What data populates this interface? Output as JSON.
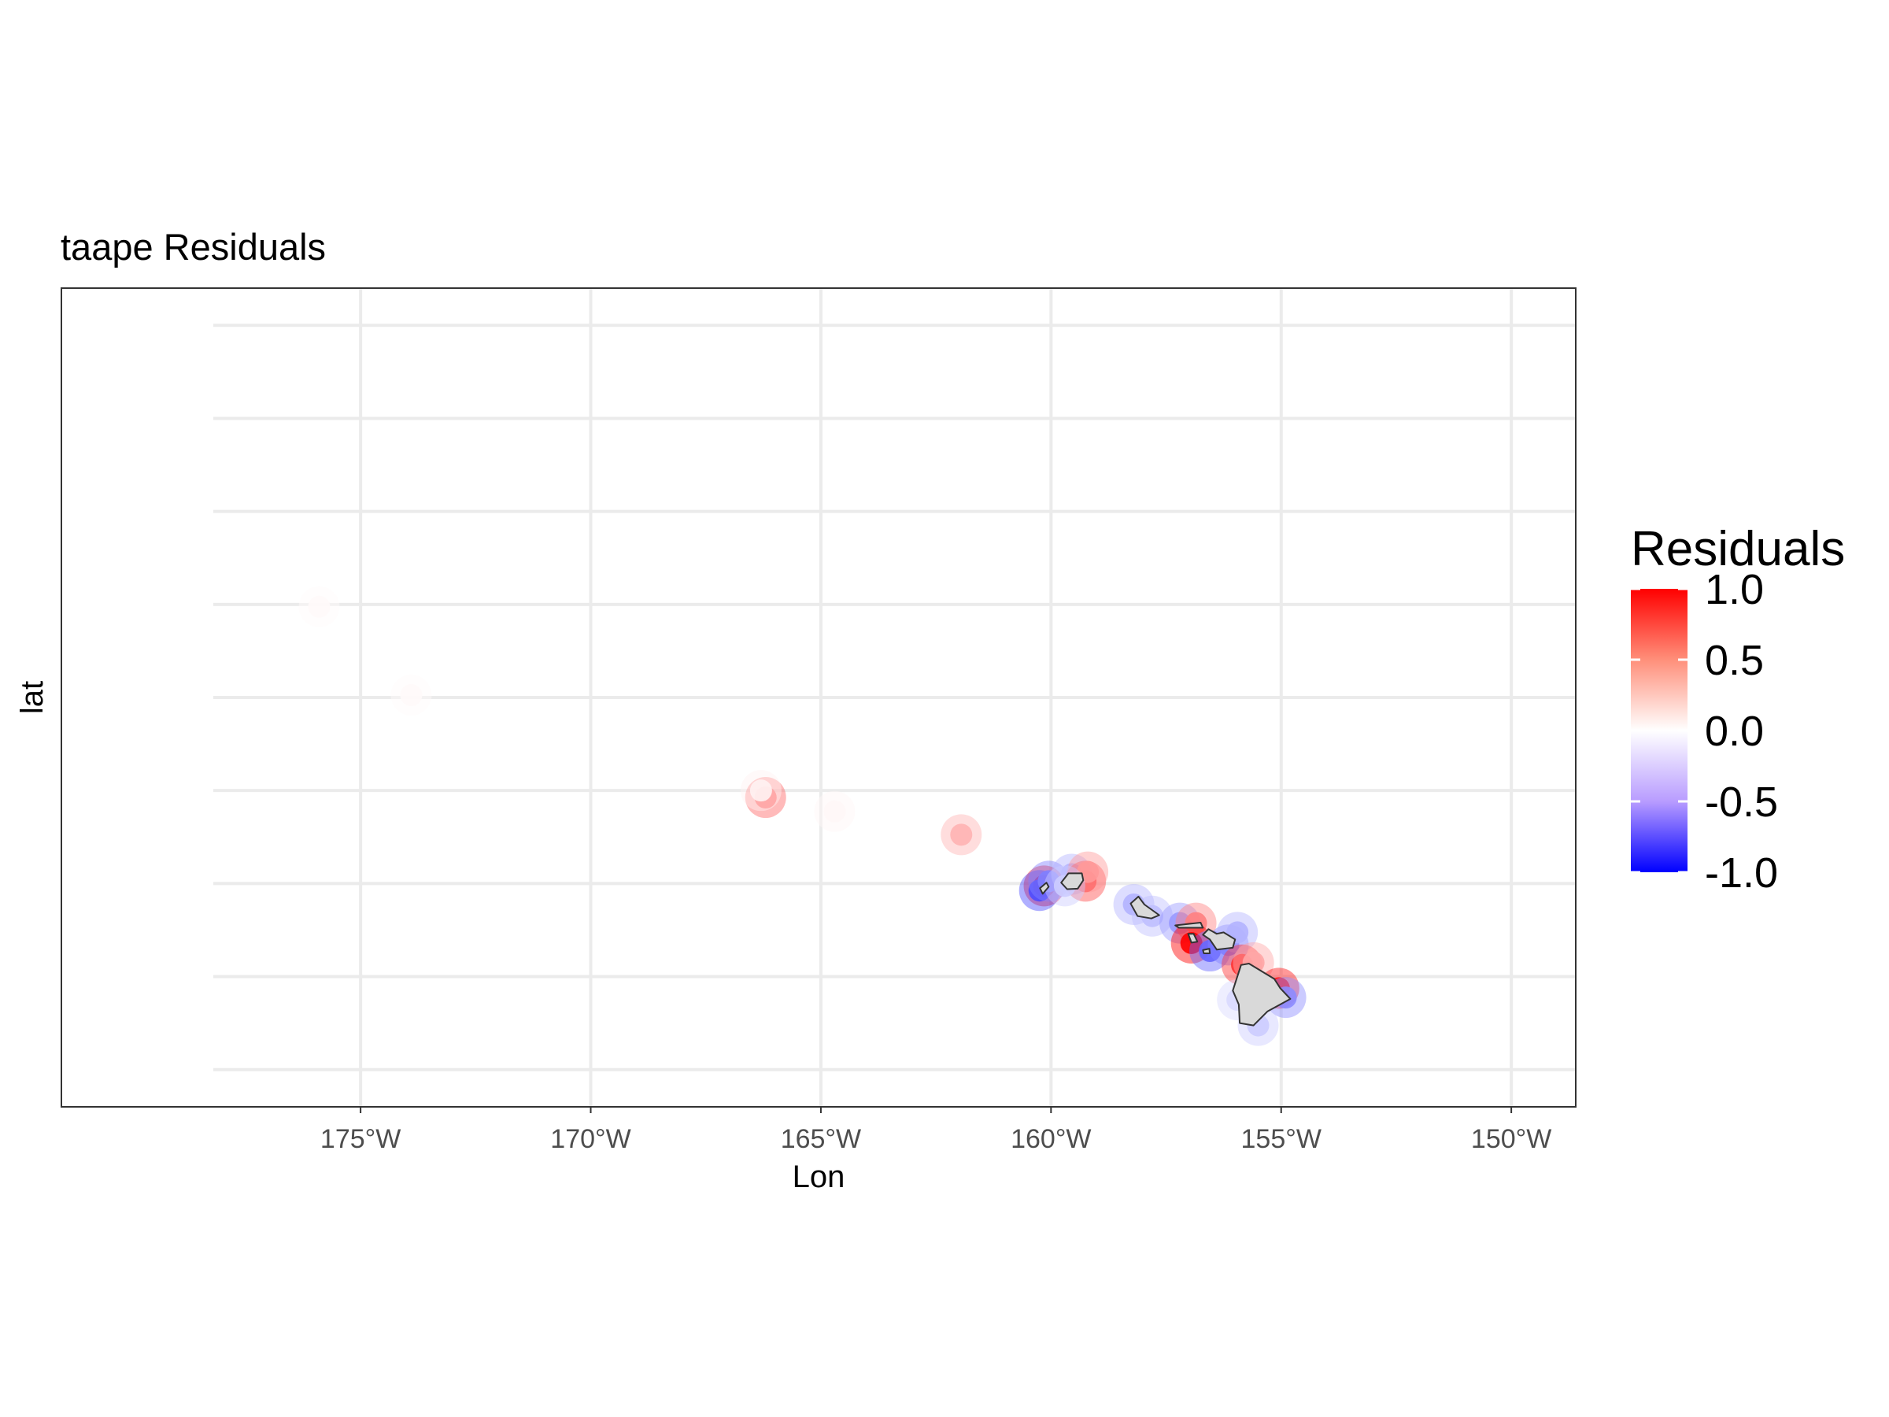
{
  "title": "taape Residuals",
  "axes": {
    "x_title": "Lon",
    "y_title": "lat",
    "x_ticks": [
      {
        "value": -175,
        "label": "175°W"
      },
      {
        "value": -170,
        "label": "170°W"
      },
      {
        "value": -165,
        "label": "165°W"
      },
      {
        "value": -160,
        "label": "160°W"
      },
      {
        "value": -155,
        "label": "155°W"
      },
      {
        "value": -150,
        "label": "150°W"
      }
    ],
    "x_range": [
      -181.5,
      -148.6
    ],
    "y_range": [
      17.2,
      34.8
    ],
    "y_gridlines": [
      18,
      20,
      22,
      24,
      26,
      28,
      30,
      32,
      34
    ],
    "grid": true
  },
  "legend": {
    "title": "Residuals",
    "placement": "right",
    "range": [
      -1.0,
      1.0
    ],
    "labels": [
      {
        "value": 1.0,
        "label": "1.0"
      },
      {
        "value": 0.5,
        "label": "0.5"
      },
      {
        "value": 0.0,
        "label": "0.0"
      },
      {
        "value": -0.5,
        "label": "-0.5"
      },
      {
        "value": -1.0,
        "label": "-1.0"
      }
    ],
    "colors": {
      "low": "#0000ff",
      "mid": "#ffffff",
      "high": "#ff0000"
    }
  },
  "colors": {
    "land": "#d9d9d9",
    "land_outline": "#333333",
    "grid": "#ebebeb",
    "panel_border": "#333333"
  },
  "map_data": {
    "islands": [
      {
        "name": "Niihau",
        "outline": [
          [
            -160.24,
            21.9
          ],
          [
            -160.1,
            22.02
          ],
          [
            -160.05,
            21.93
          ],
          [
            -160.18,
            21.78
          ]
        ]
      },
      {
        "name": "Kauai",
        "outline": [
          [
            -159.78,
            22.02
          ],
          [
            -159.62,
            22.22
          ],
          [
            -159.33,
            22.22
          ],
          [
            -159.3,
            22.07
          ],
          [
            -159.42,
            21.89
          ],
          [
            -159.65,
            21.88
          ]
        ]
      },
      {
        "name": "Oahu",
        "outline": [
          [
            -158.27,
            21.57
          ],
          [
            -158.1,
            21.72
          ],
          [
            -157.97,
            21.55
          ],
          [
            -157.65,
            21.32
          ],
          [
            -157.82,
            21.25
          ],
          [
            -158.12,
            21.3
          ]
        ]
      },
      {
        "name": "Molokai",
        "outline": [
          [
            -157.3,
            21.1
          ],
          [
            -156.75,
            21.16
          ],
          [
            -156.7,
            21.05
          ],
          [
            -157.22,
            21.05
          ]
        ]
      },
      {
        "name": "Lanai",
        "outline": [
          [
            -157.02,
            20.92
          ],
          [
            -156.9,
            20.92
          ],
          [
            -156.82,
            20.75
          ],
          [
            -156.95,
            20.73
          ]
        ]
      },
      {
        "name": "Maui",
        "outline": [
          [
            -156.7,
            20.9
          ],
          [
            -156.58,
            21.02
          ],
          [
            -156.4,
            20.92
          ],
          [
            -156.25,
            20.95
          ],
          [
            -156.0,
            20.8
          ],
          [
            -156.05,
            20.62
          ],
          [
            -156.4,
            20.58
          ],
          [
            -156.55,
            20.8
          ]
        ]
      },
      {
        "name": "Kahoolawe",
        "outline": [
          [
            -156.7,
            20.57
          ],
          [
            -156.56,
            20.6
          ],
          [
            -156.55,
            20.5
          ],
          [
            -156.68,
            20.5
          ]
        ]
      },
      {
        "name": "Hawaii",
        "outline": [
          [
            -155.87,
            20.25
          ],
          [
            -155.7,
            20.28
          ],
          [
            -155.15,
            19.95
          ],
          [
            -155.02,
            19.75
          ],
          [
            -154.8,
            19.52
          ],
          [
            -155.3,
            19.25
          ],
          [
            -155.6,
            18.95
          ],
          [
            -155.9,
            19.0
          ],
          [
            -155.92,
            19.4
          ],
          [
            -156.05,
            19.7
          ]
        ]
      }
    ],
    "residuals": [
      {
        "lon": -160.15,
        "lat": 21.95,
        "value": 0.9
      },
      {
        "lon": -160.25,
        "lat": 21.85,
        "value": -0.7
      },
      {
        "lon": -160.05,
        "lat": 22.05,
        "value": -0.5
      },
      {
        "lon": -159.55,
        "lat": 22.2,
        "value": -0.3
      },
      {
        "lon": -159.25,
        "lat": 22.05,
        "value": 0.7
      },
      {
        "lon": -159.2,
        "lat": 22.25,
        "value": 0.4
      },
      {
        "lon": -159.7,
        "lat": 21.95,
        "value": -0.2
      },
      {
        "lon": -158.2,
        "lat": 21.55,
        "value": -0.3
      },
      {
        "lon": -157.8,
        "lat": 21.3,
        "value": -0.25
      },
      {
        "lon": -157.2,
        "lat": 21.15,
        "value": -0.4
      },
      {
        "lon": -156.85,
        "lat": 21.15,
        "value": 0.5
      },
      {
        "lon": -156.95,
        "lat": 20.72,
        "value": 1.0
      },
      {
        "lon": -156.55,
        "lat": 20.55,
        "value": -0.6
      },
      {
        "lon": -156.15,
        "lat": 20.68,
        "value": -0.5
      },
      {
        "lon": -155.95,
        "lat": 20.95,
        "value": -0.3
      },
      {
        "lon": -155.85,
        "lat": 20.25,
        "value": 0.8
      },
      {
        "lon": -155.6,
        "lat": 20.3,
        "value": 0.35
      },
      {
        "lon": -155.05,
        "lat": 19.75,
        "value": 0.9
      },
      {
        "lon": -154.9,
        "lat": 19.55,
        "value": -0.45
      },
      {
        "lon": -155.5,
        "lat": 18.95,
        "value": -0.2
      },
      {
        "lon": -155.95,
        "lat": 19.5,
        "value": -0.15
      },
      {
        "lon": -166.2,
        "lat": 23.85,
        "value": 0.6
      },
      {
        "lon": -161.95,
        "lat": 23.05,
        "value": 0.3
      },
      {
        "lon": -166.3,
        "lat": 24.0,
        "value": 0.05
      },
      {
        "lon": -175.9,
        "lat": 27.95,
        "value": 0.02
      },
      {
        "lon": -173.9,
        "lat": 26.05,
        "value": 0.02
      },
      {
        "lon": -164.7,
        "lat": 23.55,
        "value": 0.03
      }
    ]
  }
}
